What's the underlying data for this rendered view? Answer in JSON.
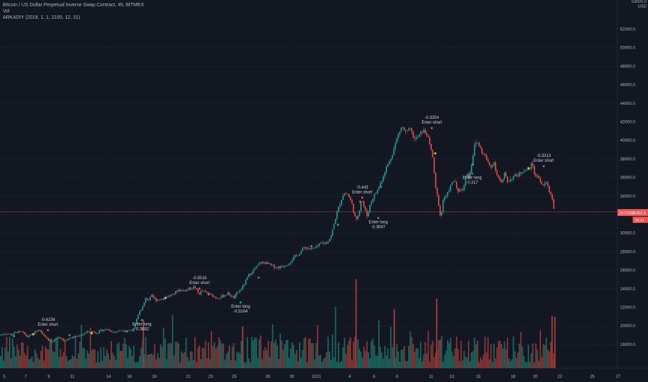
{
  "header": {
    "title": "Bitcoin / US Dollar Perpetual Inverse Swap Contract, 4h, BITMEX",
    "volume_label": "Vol",
    "indicator_label": "ARKADIY (2018, 1, 1, 2100, 12, 31)",
    "corner_price": "53000.0",
    "currency": "USD"
  },
  "price_tag": {
    "value": "33452.5",
    "code": "ZBT2002",
    "countdown": "05:41"
  },
  "colors": {
    "background": "#131722",
    "up": "#26a69a",
    "down": "#ef5350",
    "grid": "#1f2330",
    "text": "#b2b5be",
    "volume_up": "#1d6b63",
    "volume_down": "#8e3a38"
  },
  "chart_data": {
    "type": "candlestick",
    "symbol": "XBTUSD",
    "timeframe": "4h",
    "y_ticks": [
      "18000.0",
      "20000.0",
      "22000.0",
      "24000.0",
      "26000.0",
      "28000.0",
      "30000.0",
      "32000.0",
      "34000.0",
      "36000.0",
      "38000.0",
      "40000.0",
      "42000.0",
      "44000.0",
      "46000.0",
      "48000.0",
      "50000.0",
      "52000.0"
    ],
    "x_ticks": [
      "5",
      "7",
      "9",
      "11",
      "14",
      "16",
      "18",
      "21",
      "23",
      "25",
      "28",
      "30",
      "2021",
      "4",
      "6",
      "8",
      "11",
      "13",
      "15",
      "18",
      "20",
      "22",
      "25",
      "27"
    ],
    "ylim": [
      16800,
      53300
    ],
    "price_track": [
      [
        0,
        19000
      ],
      [
        8,
        19200
      ],
      [
        16,
        19050
      ],
      [
        24,
        19350
      ],
      [
        32,
        19300
      ],
      [
        40,
        18800
      ],
      [
        48,
        19200
      ],
      [
        56,
        19600
      ],
      [
        62,
        19100
      ],
      [
        70,
        18500
      ],
      [
        76,
        18200
      ],
      [
        84,
        18900
      ],
      [
        92,
        18400
      ],
      [
        100,
        18700
      ],
      [
        108,
        18800
      ],
      [
        116,
        19000
      ],
      [
        124,
        19300
      ],
      [
        132,
        19400
      ],
      [
        140,
        19250
      ],
      [
        148,
        19600
      ],
      [
        156,
        19600
      ],
      [
        164,
        19300
      ],
      [
        172,
        19500
      ],
      [
        180,
        19550
      ],
      [
        186,
        19500
      ],
      [
        192,
        19600
      ],
      [
        196,
        20500
      ],
      [
        200,
        21500
      ],
      [
        205,
        22000
      ],
      [
        210,
        23000
      ],
      [
        214,
        22800
      ],
      [
        218,
        23200
      ],
      [
        224,
        22800
      ],
      [
        232,
        22900
      ],
      [
        240,
        23200
      ],
      [
        248,
        23300
      ],
      [
        256,
        23900
      ],
      [
        264,
        23800
      ],
      [
        272,
        24000
      ],
      [
        280,
        24200
      ],
      [
        286,
        23400
      ],
      [
        290,
        23800
      ],
      [
        296,
        23600
      ],
      [
        304,
        23300
      ],
      [
        312,
        23000
      ],
      [
        320,
        23200
      ],
      [
        328,
        23500
      ],
      [
        336,
        23000
      ],
      [
        342,
        23600
      ],
      [
        350,
        24300
      ],
      [
        358,
        25500
      ],
      [
        366,
        26100
      ],
      [
        374,
        26800
      ],
      [
        382,
        26800
      ],
      [
        390,
        26500
      ],
      [
        398,
        26300
      ],
      [
        406,
        26400
      ],
      [
        414,
        26700
      ],
      [
        422,
        27300
      ],
      [
        430,
        27800
      ],
      [
        438,
        28500
      ],
      [
        446,
        28300
      ],
      [
        454,
        28400
      ],
      [
        462,
        28900
      ],
      [
        470,
        29000
      ],
      [
        476,
        29600
      ],
      [
        482,
        31500
      ],
      [
        488,
        33000
      ],
      [
        494,
        34300
      ],
      [
        500,
        34200
      ],
      [
        506,
        33200
      ],
      [
        512,
        31200
      ],
      [
        516,
        32200
      ],
      [
        520,
        33800
      ],
      [
        524,
        32700
      ],
      [
        528,
        31800
      ],
      [
        532,
        33000
      ],
      [
        536,
        33800
      ],
      [
        542,
        34500
      ],
      [
        548,
        35500
      ],
      [
        554,
        36800
      ],
      [
        560,
        37700
      ],
      [
        566,
        39000
      ],
      [
        572,
        40500
      ],
      [
        578,
        41500
      ],
      [
        584,
        40800
      ],
      [
        590,
        41200
      ],
      [
        596,
        40100
      ],
      [
        602,
        40400
      ],
      [
        608,
        41100
      ],
      [
        614,
        40700
      ],
      [
        618,
        39500
      ],
      [
        622,
        38500
      ],
      [
        626,
        35000
      ],
      [
        630,
        33600
      ],
      [
        634,
        31500
      ],
      [
        638,
        34000
      ],
      [
        642,
        33800
      ],
      [
        646,
        34800
      ],
      [
        650,
        35300
      ],
      [
        654,
        35800
      ],
      [
        658,
        34200
      ],
      [
        662,
        35000
      ],
      [
        666,
        34500
      ],
      [
        670,
        36500
      ],
      [
        674,
        36100
      ],
      [
        678,
        37300
      ],
      [
        682,
        39300
      ],
      [
        686,
        39900
      ],
      [
        690,
        39300
      ],
      [
        694,
        38600
      ],
      [
        698,
        38300
      ],
      [
        702,
        37500
      ],
      [
        706,
        37100
      ],
      [
        710,
        37800
      ],
      [
        714,
        36500
      ],
      [
        718,
        35800
      ],
      [
        722,
        35300
      ],
      [
        726,
        36500
      ],
      [
        730,
        35600
      ],
      [
        734,
        35800
      ],
      [
        738,
        36100
      ],
      [
        742,
        36200
      ],
      [
        746,
        36300
      ],
      [
        750,
        36600
      ],
      [
        754,
        36900
      ],
      [
        758,
        36700
      ],
      [
        762,
        37100
      ],
      [
        766,
        37500
      ],
      [
        770,
        35900
      ],
      [
        774,
        36300
      ],
      [
        778,
        35400
      ],
      [
        782,
        35100
      ],
      [
        786,
        35500
      ],
      [
        790,
        34500
      ],
      [
        794,
        34000
      ],
      [
        798,
        31700
      ]
    ],
    "annotations": [
      {
        "label": "-0.6236",
        "action": "Enter short",
        "x": 69,
        "price": 19400,
        "anchor": "above"
      },
      {
        "label": "Enter long",
        "action": "-0.3682",
        "x": 204,
        "price": 20800,
        "anchor": "below"
      },
      {
        "label": "-0.5518",
        "action": "Enter short",
        "x": 287,
        "price": 23900,
        "anchor": "above"
      },
      {
        "label": "Enter long",
        "action": "-0.5164",
        "x": 346,
        "price": 22700,
        "anchor": "below"
      },
      {
        "label": "-0.443",
        "action": "Enter short",
        "x": 521,
        "price": 33700,
        "anchor": "above"
      },
      {
        "label": "Enter long",
        "action": "-0.3647",
        "x": 544,
        "price": 31800,
        "anchor": "below"
      },
      {
        "label": "-0.3354",
        "action": "Enter short",
        "x": 621,
        "price": 41200,
        "anchor": "above"
      },
      {
        "label": "Enter long",
        "action": "-0.317",
        "x": 679,
        "price": 36600,
        "anchor": "below"
      },
      {
        "label": "-0.3313",
        "action": "Enter short",
        "x": 782,
        "price": 37100,
        "anchor": "above"
      }
    ]
  }
}
